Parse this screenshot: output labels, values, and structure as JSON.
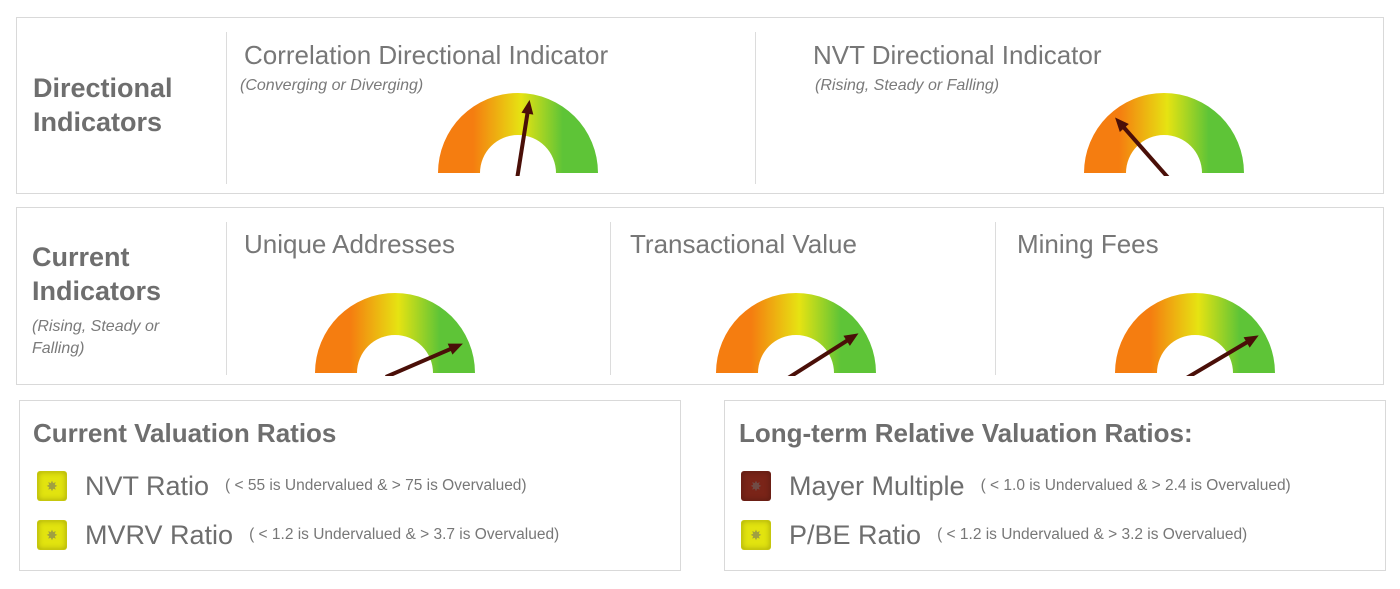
{
  "directional": {
    "heading": "Directional Indicators",
    "indicators": [
      {
        "title": "Correlation Directional Indicator",
        "subtitle": "(Converging or Diverging)",
        "needle_level": 0.55
      },
      {
        "title": "NVT Directional Indicator",
        "subtitle": "(Rising, Steady or Falling)",
        "needle_level": 0.27
      }
    ]
  },
  "current": {
    "heading": "Current Indicators",
    "subtitle": "(Rising, Steady or Falling)",
    "indicators": [
      {
        "title": "Unique Addresses",
        "needle_level": 0.87
      },
      {
        "title": "Transactional Value",
        "needle_level": 0.82
      },
      {
        "title": "Mining Fees",
        "needle_level": 0.83
      }
    ]
  },
  "valuation": {
    "title": "Current Valuation Ratios",
    "ratios": [
      {
        "label": "NVT Ratio",
        "note": "( < 55 is Undervalued  &  > 75 is Overvalued)",
        "status_color": "#e2e30f"
      },
      {
        "label": "MVRV Ratio",
        "note": "( < 1.2 is Undervalued  &  > 3.7 is Overvalued)",
        "status_color": "#e2e30f"
      }
    ]
  },
  "longterm": {
    "title": "Long-term Relative Valuation Ratios:",
    "ratios": [
      {
        "label": "Mayer Multiple",
        "note": "( < 1.0 is Undervalued  &  > 2.4 is Overvalued)",
        "status_color": "#7a2418"
      },
      {
        "label": "P/BE Ratio",
        "note": "( < 1.2 is Undervalued  &  > 3.2 is Overvalued)",
        "status_color": "#e2e30f"
      }
    ]
  },
  "gauge_colors": {
    "low": "#f57d10",
    "mid": "#e6e312",
    "high": "#5ec437",
    "needle": "#4a0f08"
  }
}
